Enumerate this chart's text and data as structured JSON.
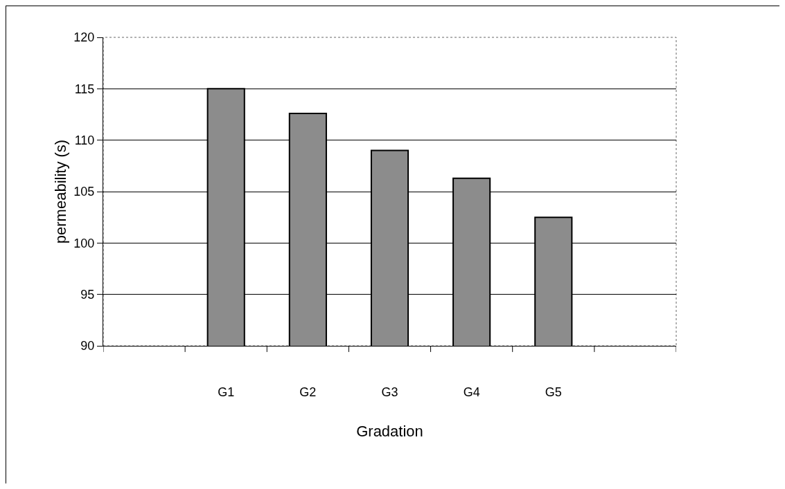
{
  "chart_data": {
    "type": "bar",
    "xlabel": "Gradation",
    "ylabel": "permeability (s)",
    "categories": [
      null,
      "G1",
      "G2",
      "G3",
      "G4",
      "G5",
      null
    ],
    "values": [
      null,
      115,
      112.6,
      109,
      106.3,
      102.5,
      null
    ],
    "color": "#8c8c8c",
    "ylim": [
      90,
      120
    ],
    "yticks": [
      90,
      95,
      100,
      105,
      110,
      115,
      120
    ],
    "grid": "y",
    "legend": false
  }
}
